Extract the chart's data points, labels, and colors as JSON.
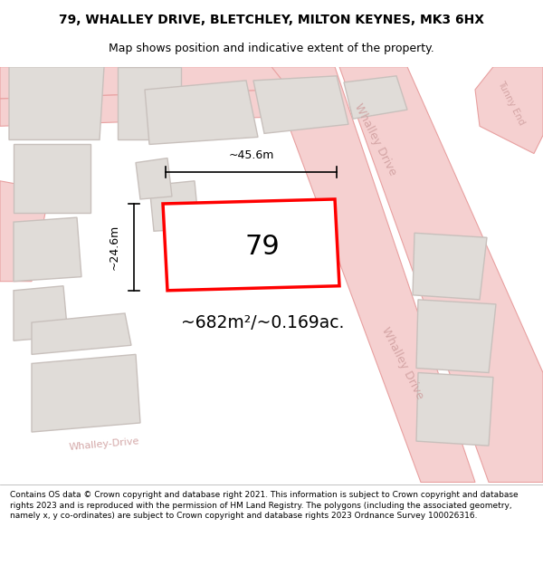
{
  "title": "79, WHALLEY DRIVE, BLETCHLEY, MILTON KEYNES, MK3 6HX",
  "subtitle": "Map shows position and indicative extent of the property.",
  "footer": "Contains OS data © Crown copyright and database right 2021. This information is subject to Crown copyright and database rights 2023 and is reproduced with the permission of HM Land Registry. The polygons (including the associated geometry, namely x, y co-ordinates) are subject to Crown copyright and database rights 2023 Ordnance Survey 100026316.",
  "bg_color": "#f2eeeb",
  "road_color": "#f5d0d0",
  "road_border": "#e8a0a0",
  "building_color": "#e0dcd8",
  "building_border": "#c8c0bc",
  "highlight_red": "#ff0000",
  "highlight_fill": "#ffffff",
  "area_text": "~682m²/~0.169ac.",
  "number_text": "79",
  "width_text": "~45.6m",
  "height_text": "~24.6m",
  "road_label_whalley1": "Whalley Drive",
  "road_label_whalley2": "Whalley Drive",
  "road_label_whalley3": "Whalley-Drive",
  "road_label_tunny": "Tunny End",
  "footer_separator_color": "#aaaaaa",
  "title_fontsize": 10,
  "subtitle_fontsize": 9,
  "footer_fontsize": 6.5
}
